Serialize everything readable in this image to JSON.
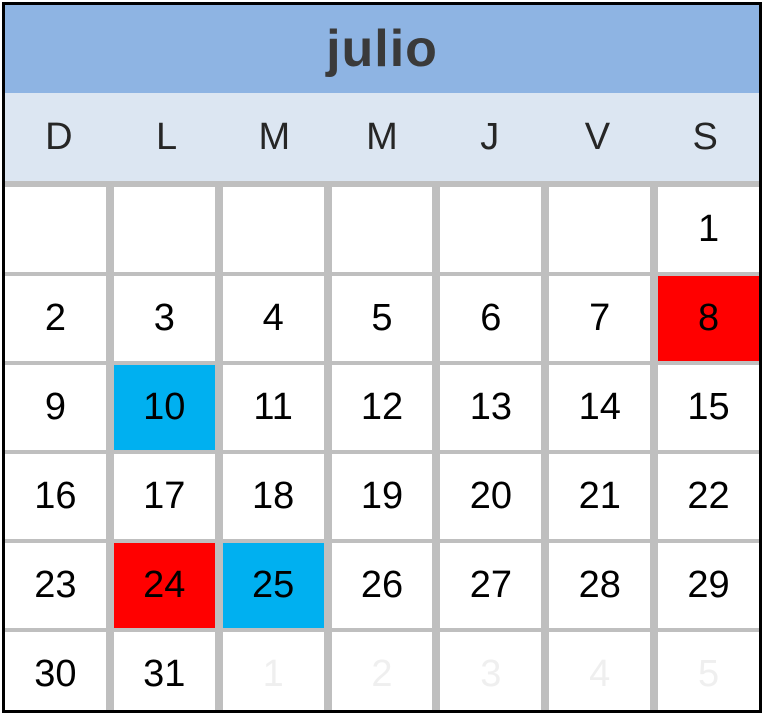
{
  "month": "julio",
  "weekdays": [
    "D",
    "L",
    "M",
    "M",
    "J",
    "V",
    "S"
  ],
  "colors": {
    "header": "#8eb4e3",
    "weekday_bg": "#dce6f2",
    "red": "#ff0000",
    "blue": "#00b0f0"
  },
  "weeks": [
    [
      {
        "day": ""
      },
      {
        "day": ""
      },
      {
        "day": ""
      },
      {
        "day": ""
      },
      {
        "day": ""
      },
      {
        "day": ""
      },
      {
        "day": "1"
      }
    ],
    [
      {
        "day": "2"
      },
      {
        "day": "3"
      },
      {
        "day": "4"
      },
      {
        "day": "5"
      },
      {
        "day": "6"
      },
      {
        "day": "7"
      },
      {
        "day": "8",
        "highlight": "red"
      }
    ],
    [
      {
        "day": "9"
      },
      {
        "day": "10",
        "highlight": "blue"
      },
      {
        "day": "11"
      },
      {
        "day": "12"
      },
      {
        "day": "13"
      },
      {
        "day": "14"
      },
      {
        "day": "15"
      }
    ],
    [
      {
        "day": "16"
      },
      {
        "day": "17"
      },
      {
        "day": "18"
      },
      {
        "day": "19"
      },
      {
        "day": "20"
      },
      {
        "day": "21"
      },
      {
        "day": "22"
      }
    ],
    [
      {
        "day": "23"
      },
      {
        "day": "24",
        "highlight": "red"
      },
      {
        "day": "25",
        "highlight": "blue"
      },
      {
        "day": "26"
      },
      {
        "day": "27"
      },
      {
        "day": "28"
      },
      {
        "day": "29"
      }
    ],
    [
      {
        "day": "30"
      },
      {
        "day": "31"
      },
      {
        "day": "1",
        "muted": true
      },
      {
        "day": "2",
        "muted": true
      },
      {
        "day": "3",
        "muted": true
      },
      {
        "day": "4",
        "muted": true
      },
      {
        "day": "5",
        "muted": true
      }
    ]
  ]
}
